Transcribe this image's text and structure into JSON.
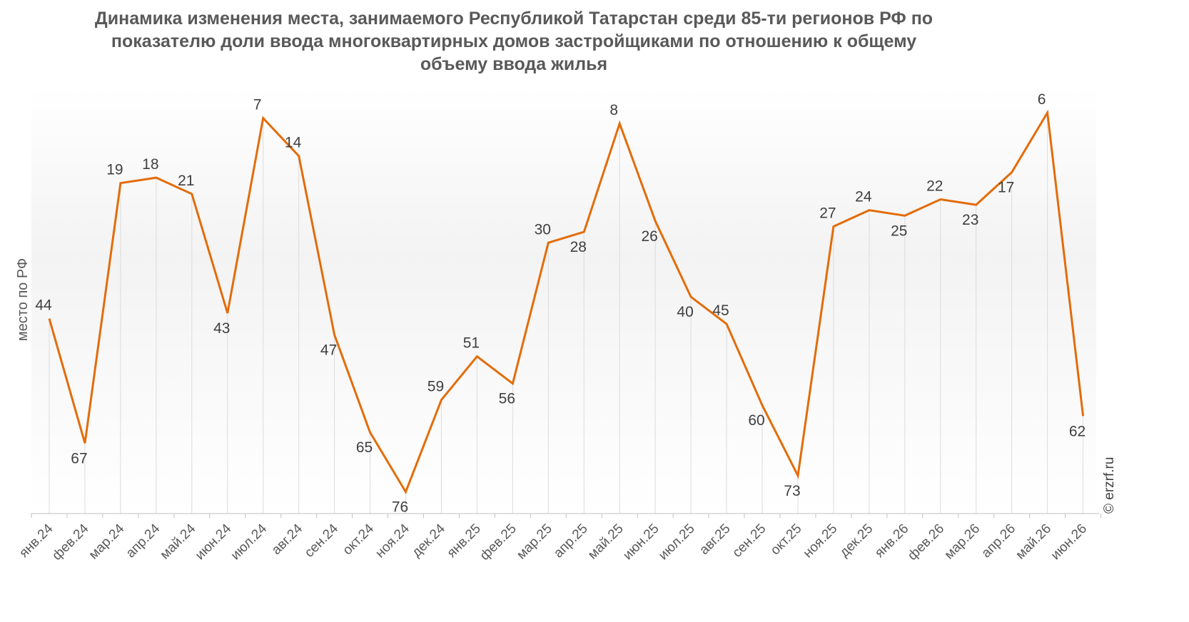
{
  "chart_data": {
    "type": "line",
    "title_lines": [
      "Динамика изменения места, занимаемого Республикой Татарстан среди 85-ти регионов РФ по",
      "показателю доли ввода многоквартирных домов застройщиками по отношению к общему",
      "объему ввода жилья"
    ],
    "ylabel": "место по РФ",
    "xlabel": "",
    "y_reversed": true,
    "ylim": [
      1,
      80
    ],
    "grid": "vertical",
    "line_color": "#E36C09",
    "categories": [
      "янв.24",
      "фев.24",
      "мар.24",
      "апр.24",
      "май.24",
      "июн.24",
      "июл.24",
      "авг.24",
      "сен.24",
      "окт.24",
      "ноя.24",
      "дек.24",
      "янв.25",
      "фев.25",
      "мар.25",
      "апр.25",
      "май.25",
      "июн.25",
      "июл.25",
      "авг.25",
      "сен.25",
      "окт.25",
      "ноя.25",
      "дек.25",
      "янв.26",
      "фев.26",
      "мар.26",
      "апр.26",
      "май.26",
      "июн.26"
    ],
    "series": [
      {
        "values": [
          44,
          67,
          19,
          18,
          21,
          43,
          7,
          14,
          47,
          65,
          76,
          59,
          51,
          56,
          30,
          28,
          8,
          26,
          40,
          45,
          60,
          73,
          27,
          24,
          25,
          22,
          23,
          17,
          6,
          62
        ]
      }
    ],
    "watermark": "© erzrf.ru"
  }
}
